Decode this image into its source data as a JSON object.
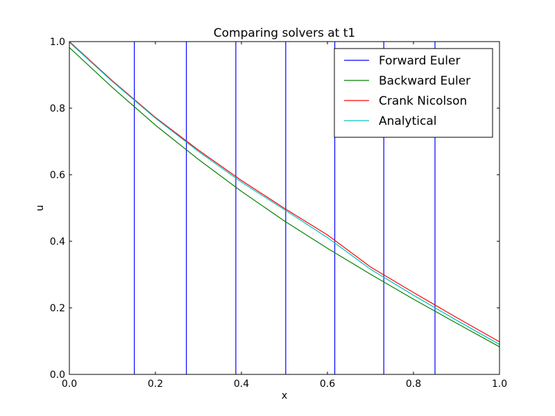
{
  "chart_data": {
    "type": "line",
    "title": "Comparing solvers at t1",
    "xlabel": "x",
    "ylabel": "u",
    "xlim": [
      0.0,
      1.0
    ],
    "ylim": [
      0.0,
      1.0
    ],
    "xticks": [
      "0.0",
      "0.2",
      "0.4",
      "0.6",
      "0.8",
      "1.0"
    ],
    "yticks": [
      "0.0",
      "0.2",
      "0.4",
      "0.6",
      "0.8",
      "1.0"
    ],
    "grid": false,
    "legend_position": "top-right",
    "series": [
      {
        "name": "Forward Euler",
        "color": "#0000ff",
        "style": "vertical-lines",
        "x_positions": [
          0.151,
          0.272,
          0.387,
          0.503,
          0.617,
          0.731,
          0.85
        ]
      },
      {
        "name": "Backward Euler",
        "color": "#008000",
        "x": [
          0.0,
          0.1,
          0.2,
          0.3,
          0.4,
          0.5,
          0.6,
          0.7,
          0.8,
          0.9,
          1.0
        ],
        "y": [
          0.982,
          0.862,
          0.749,
          0.646,
          0.55,
          0.461,
          0.379,
          0.301,
          0.226,
          0.154,
          0.083
        ]
      },
      {
        "name": "Crank Nicolson",
        "color": "#ff0000",
        "x": [
          0.0,
          0.1,
          0.2,
          0.3,
          0.4,
          0.5,
          0.6,
          0.7,
          0.8,
          0.9,
          1.0
        ],
        "y": [
          1.0,
          0.882,
          0.772,
          0.674,
          0.583,
          0.499,
          0.419,
          0.323,
          0.246,
          0.171,
          0.098
        ]
      },
      {
        "name": "Analytical",
        "color": "#00bfbf",
        "x": [
          0.0,
          0.1,
          0.2,
          0.3,
          0.4,
          0.5,
          0.6,
          0.7,
          0.8,
          0.9,
          1.0
        ],
        "y": [
          0.998,
          0.88,
          0.77,
          0.67,
          0.578,
          0.495,
          0.411,
          0.316,
          0.238,
          0.163,
          0.09
        ]
      }
    ]
  }
}
